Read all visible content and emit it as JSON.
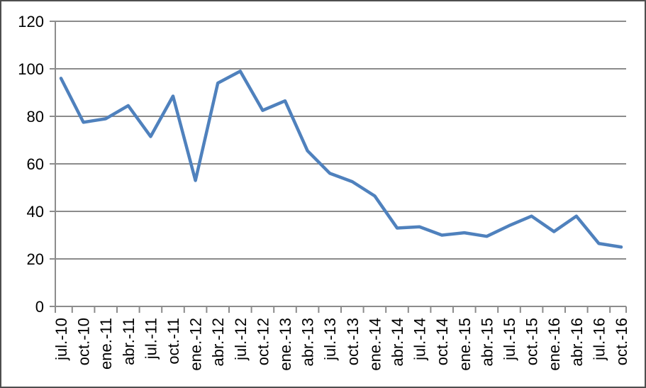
{
  "chart_data": {
    "type": "line",
    "title": "",
    "xlabel": "",
    "ylabel": "",
    "categories": [
      "jul.-10",
      "oct.-10",
      "ene.-11",
      "abr.-11",
      "jul.-11",
      "oct.-11",
      "ene.-12",
      "abr.-12",
      "jul.-12",
      "oct.-12",
      "ene.-13",
      "abr.-13",
      "jul.-13",
      "oct.-13",
      "ene.-14",
      "abr.-14",
      "jul.-14",
      "oct.-14",
      "ene.-15",
      "abr.-15",
      "jul.-15",
      "oct.-15",
      "ene.-16",
      "abr.-16",
      "jul.-16",
      "oct.-16"
    ],
    "series": [
      {
        "name": "",
        "values": [
          96,
          77.5,
          79,
          84.5,
          71.5,
          88.5,
          53,
          94,
          99,
          82.5,
          86.5,
          65.5,
          56,
          52.5,
          46.5,
          33,
          33.5,
          30,
          31,
          29.5,
          34,
          38,
          31.5,
          38,
          26.5,
          25
        ]
      }
    ],
    "ylim": [
      0,
      120
    ],
    "y_ticks": [
      0,
      20,
      40,
      60,
      80,
      100,
      120
    ],
    "grid": true,
    "legend": false,
    "x_label_rotation_degrees": 90
  },
  "colors": {
    "line": "#4F81BD",
    "gridline": "#8C8C8C",
    "axis": "#8C8C8C",
    "label_text": "#000000",
    "frame_border": "#4e4e4e",
    "background": "#FFFFFF"
  }
}
